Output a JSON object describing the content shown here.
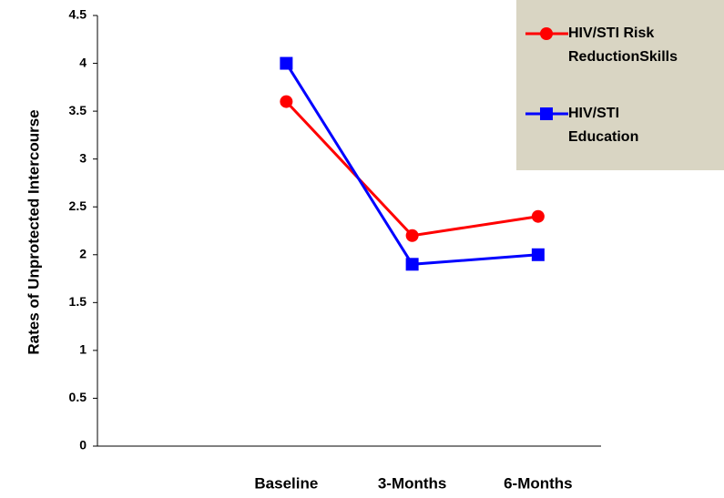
{
  "chart_data": {
    "type": "line",
    "ylabel": "Rates of Unprotected Intercourse",
    "categories": [
      null,
      "Baseline",
      "3-Months",
      "6-Months"
    ],
    "series": [
      {
        "name": "HIV/STI Risk ReductionSkills",
        "color": "#ff0000",
        "marker": "circle",
        "values": [
          null,
          3.6,
          2.2,
          2.4
        ]
      },
      {
        "name": "HIV/STI Education",
        "color": "#0000ff",
        "marker": "square",
        "values": [
          null,
          4.0,
          1.9,
          2.0
        ]
      }
    ],
    "ylim": [
      0,
      4.5
    ],
    "yticks": [
      0,
      0.5,
      1,
      1.5,
      2,
      2.5,
      3,
      3.5,
      4,
      4.5
    ],
    "legend": "upper right"
  }
}
